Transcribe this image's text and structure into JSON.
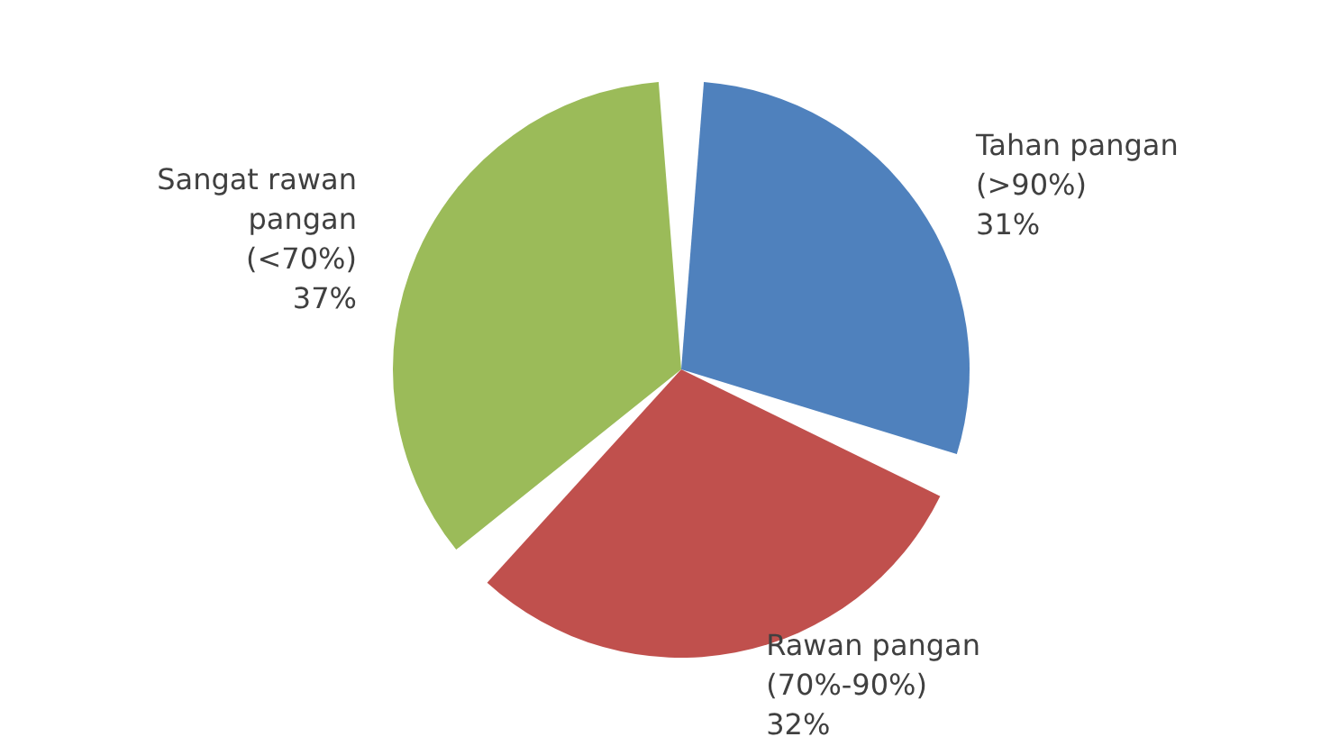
{
  "chart_data": {
    "type": "pie",
    "categories": [
      "Tahan pangan\n(>90%)",
      "Rawan pangan\n(70%-90%)",
      "Sangat rawan\npangan\n(<70%)"
    ],
    "values": [
      31,
      32,
      37
    ],
    "value_labels": [
      "31%",
      "32%",
      "37%"
    ],
    "colors": [
      "#4f81bd",
      "#c0504d",
      "#9bbb59"
    ],
    "legend": false
  }
}
